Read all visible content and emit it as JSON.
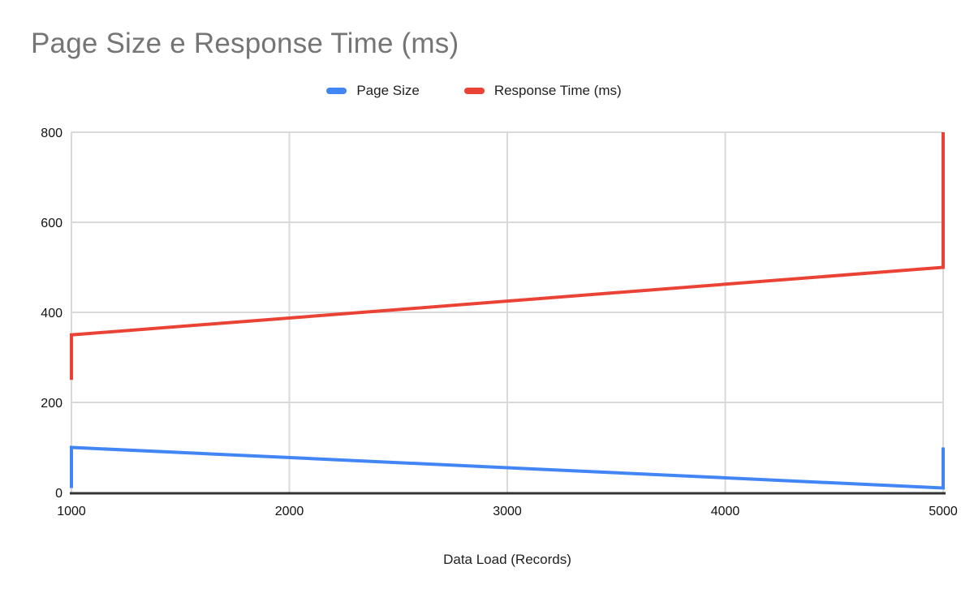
{
  "chart_data": {
    "type": "line",
    "title": "Page Size e Response Time (ms)",
    "xlabel": "Data Load (Records)",
    "ylabel": "",
    "legend_position": "top",
    "grid": true,
    "markers": false,
    "xlim": [
      1000,
      5000
    ],
    "ylim": [
      0,
      800
    ],
    "x_ticks": [
      1000,
      2000,
      3000,
      4000,
      5000
    ],
    "y_ticks": [
      0,
      200,
      400,
      600,
      800
    ],
    "series": [
      {
        "name": "Page Size",
        "color": "#4285F4",
        "points": [
          [
            1000,
            10
          ],
          [
            1000,
            100
          ],
          [
            5000,
            10
          ],
          [
            5000,
            100
          ]
        ]
      },
      {
        "name": "Response Time (ms)",
        "color": "#EA4335",
        "points": [
          [
            1000,
            250
          ],
          [
            1000,
            350
          ],
          [
            5000,
            500
          ],
          [
            5000,
            800
          ]
        ]
      }
    ],
    "palette": {
      "title_color": "#757575",
      "tick_label_color": "#111111",
      "legend_text_color": "#212121",
      "axis_title_color": "#212121",
      "gridline_color": "#d9d9d9",
      "axis_line_color": "#333333",
      "background": "#ffffff"
    }
  }
}
